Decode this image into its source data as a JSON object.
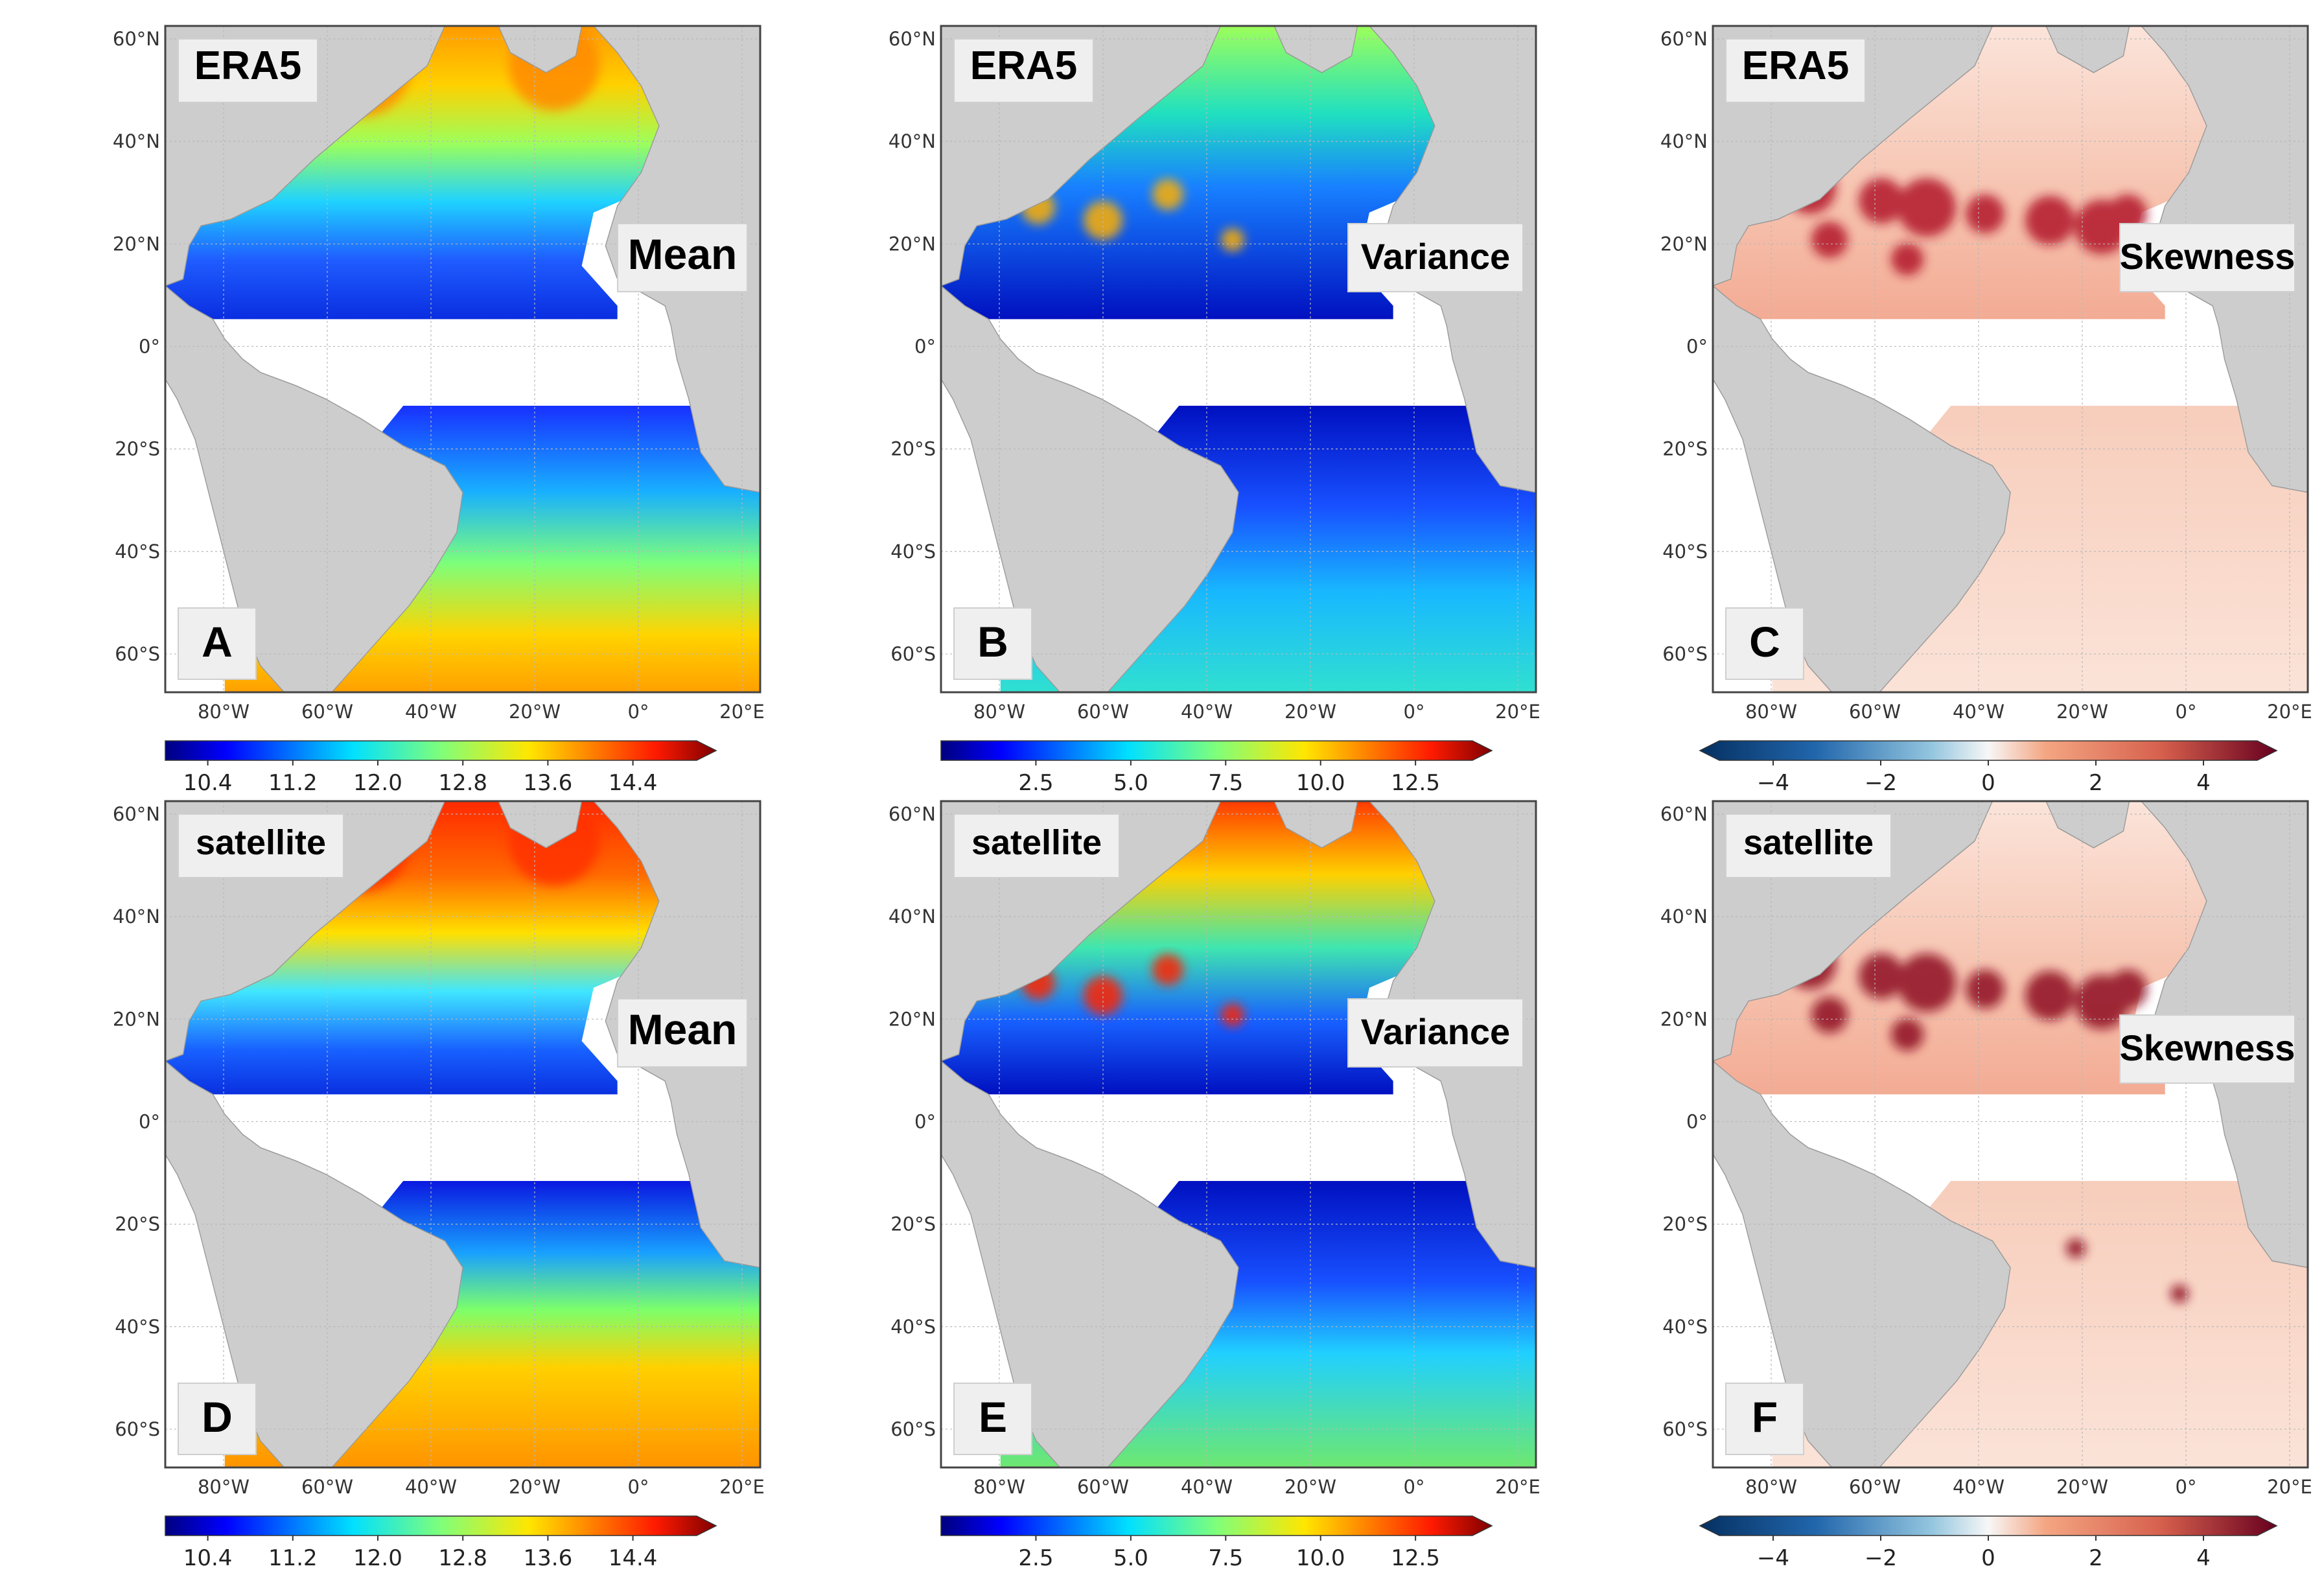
{
  "figure": {
    "rows": [
      {
        "row_name": "ERA5"
      },
      {
        "row_name": "satellite"
      }
    ],
    "lat_ticks": [
      "60°N",
      "40°N",
      "20°N",
      "0°",
      "20°S",
      "40°S",
      "60°S"
    ],
    "lon_ticks": [
      "80°W",
      "60°W",
      "40°W",
      "20°W",
      "0°",
      "20°E"
    ],
    "panels": [
      {
        "letter": "A",
        "source": "ERA5",
        "stat": "Mean",
        "cmap": "jet",
        "colorbar": {
          "ticks": [
            "10.4",
            "11.2",
            "12.0",
            "12.8",
            "13.6",
            "14.4"
          ],
          "range": [
            10.0,
            15.0
          ]
        }
      },
      {
        "letter": "B",
        "source": "ERA5",
        "stat": "Variance",
        "cmap": "jet",
        "colorbar": {
          "ticks": [
            "2.5",
            "5.0",
            "7.5",
            "10.0",
            "12.5"
          ],
          "range": [
            0.0,
            14.0
          ]
        }
      },
      {
        "letter": "C",
        "source": "ERA5",
        "stat": "Skewness",
        "cmap": "RdBu_r",
        "colorbar": {
          "ticks": [
            "−4",
            "−2",
            "0",
            "2",
            "4"
          ],
          "range": [
            -5.0,
            5.0
          ]
        }
      },
      {
        "letter": "D",
        "source": "satellite",
        "stat": "Mean",
        "cmap": "jet",
        "colorbar": {
          "ticks": [
            "10.4",
            "11.2",
            "12.0",
            "12.8",
            "13.6",
            "14.4"
          ],
          "range": [
            10.0,
            15.0
          ]
        }
      },
      {
        "letter": "E",
        "source": "satellite",
        "stat": "Variance",
        "cmap": "jet",
        "colorbar": {
          "ticks": [
            "2.5",
            "5.0",
            "7.5",
            "10.0",
            "12.5"
          ],
          "range": [
            0.0,
            14.0
          ]
        }
      },
      {
        "letter": "F",
        "source": "satellite",
        "stat": "Skewness",
        "cmap": "RdBu_r",
        "colorbar": {
          "ticks": [
            "−4",
            "−2",
            "0",
            "2",
            "4"
          ],
          "range": [
            -5.0,
            5.0
          ]
        }
      }
    ],
    "colors": {
      "land": "#cdcdcd",
      "frame": "#444444",
      "grid": "#b8b8b8",
      "ocean_blank": "#ffffff"
    }
  }
}
